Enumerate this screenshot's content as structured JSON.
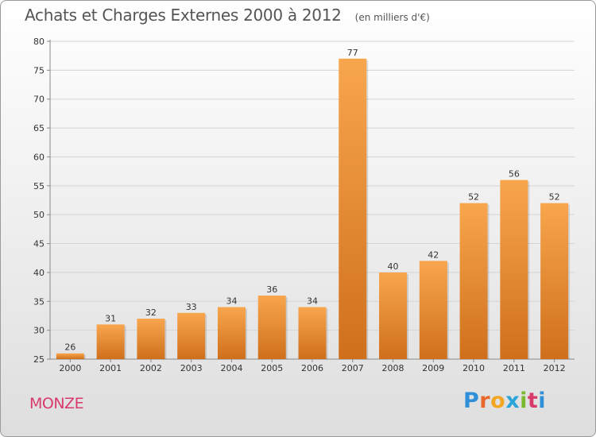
{
  "header": {
    "title": "Achats et Charges Externes 2000 à 2012",
    "subtitle": "(en milliers d'€)"
  },
  "footer": {
    "city": "MONZE",
    "logo_text": "Proxiti",
    "logo_letter_colors": [
      "#2f8fd8",
      "#e8682a",
      "#f2a623",
      "#2aa5d9",
      "#7ab82e",
      "#d83a6a",
      "#2f8fd8"
    ]
  },
  "colors": {
    "bar_top": "#f8a64e",
    "bar_bottom": "#cf6f1c",
    "grid": "#d4d4d4",
    "axis": "#888888"
  },
  "chart_data": {
    "type": "bar",
    "title": "Achats et Charges Externes 2000 à 2012",
    "subtitle": "(en milliers d'€)",
    "xlabel": "",
    "ylabel": "",
    "categories": [
      "2000",
      "2001",
      "2002",
      "2003",
      "2004",
      "2005",
      "2006",
      "2007",
      "2008",
      "2009",
      "2010",
      "2011",
      "2012"
    ],
    "values": [
      26,
      31,
      32,
      33,
      34,
      36,
      34,
      77,
      40,
      42,
      52,
      56,
      52
    ],
    "data_labels": [
      "26",
      "31",
      "32",
      "33",
      "34",
      "36",
      "34",
      "77",
      "40",
      "42",
      "52",
      "56",
      "52"
    ],
    "ylim": [
      25,
      80
    ],
    "yticks": [
      25,
      30,
      35,
      40,
      45,
      50,
      55,
      60,
      65,
      70,
      75,
      80
    ],
    "grid": true,
    "legend": "none"
  }
}
